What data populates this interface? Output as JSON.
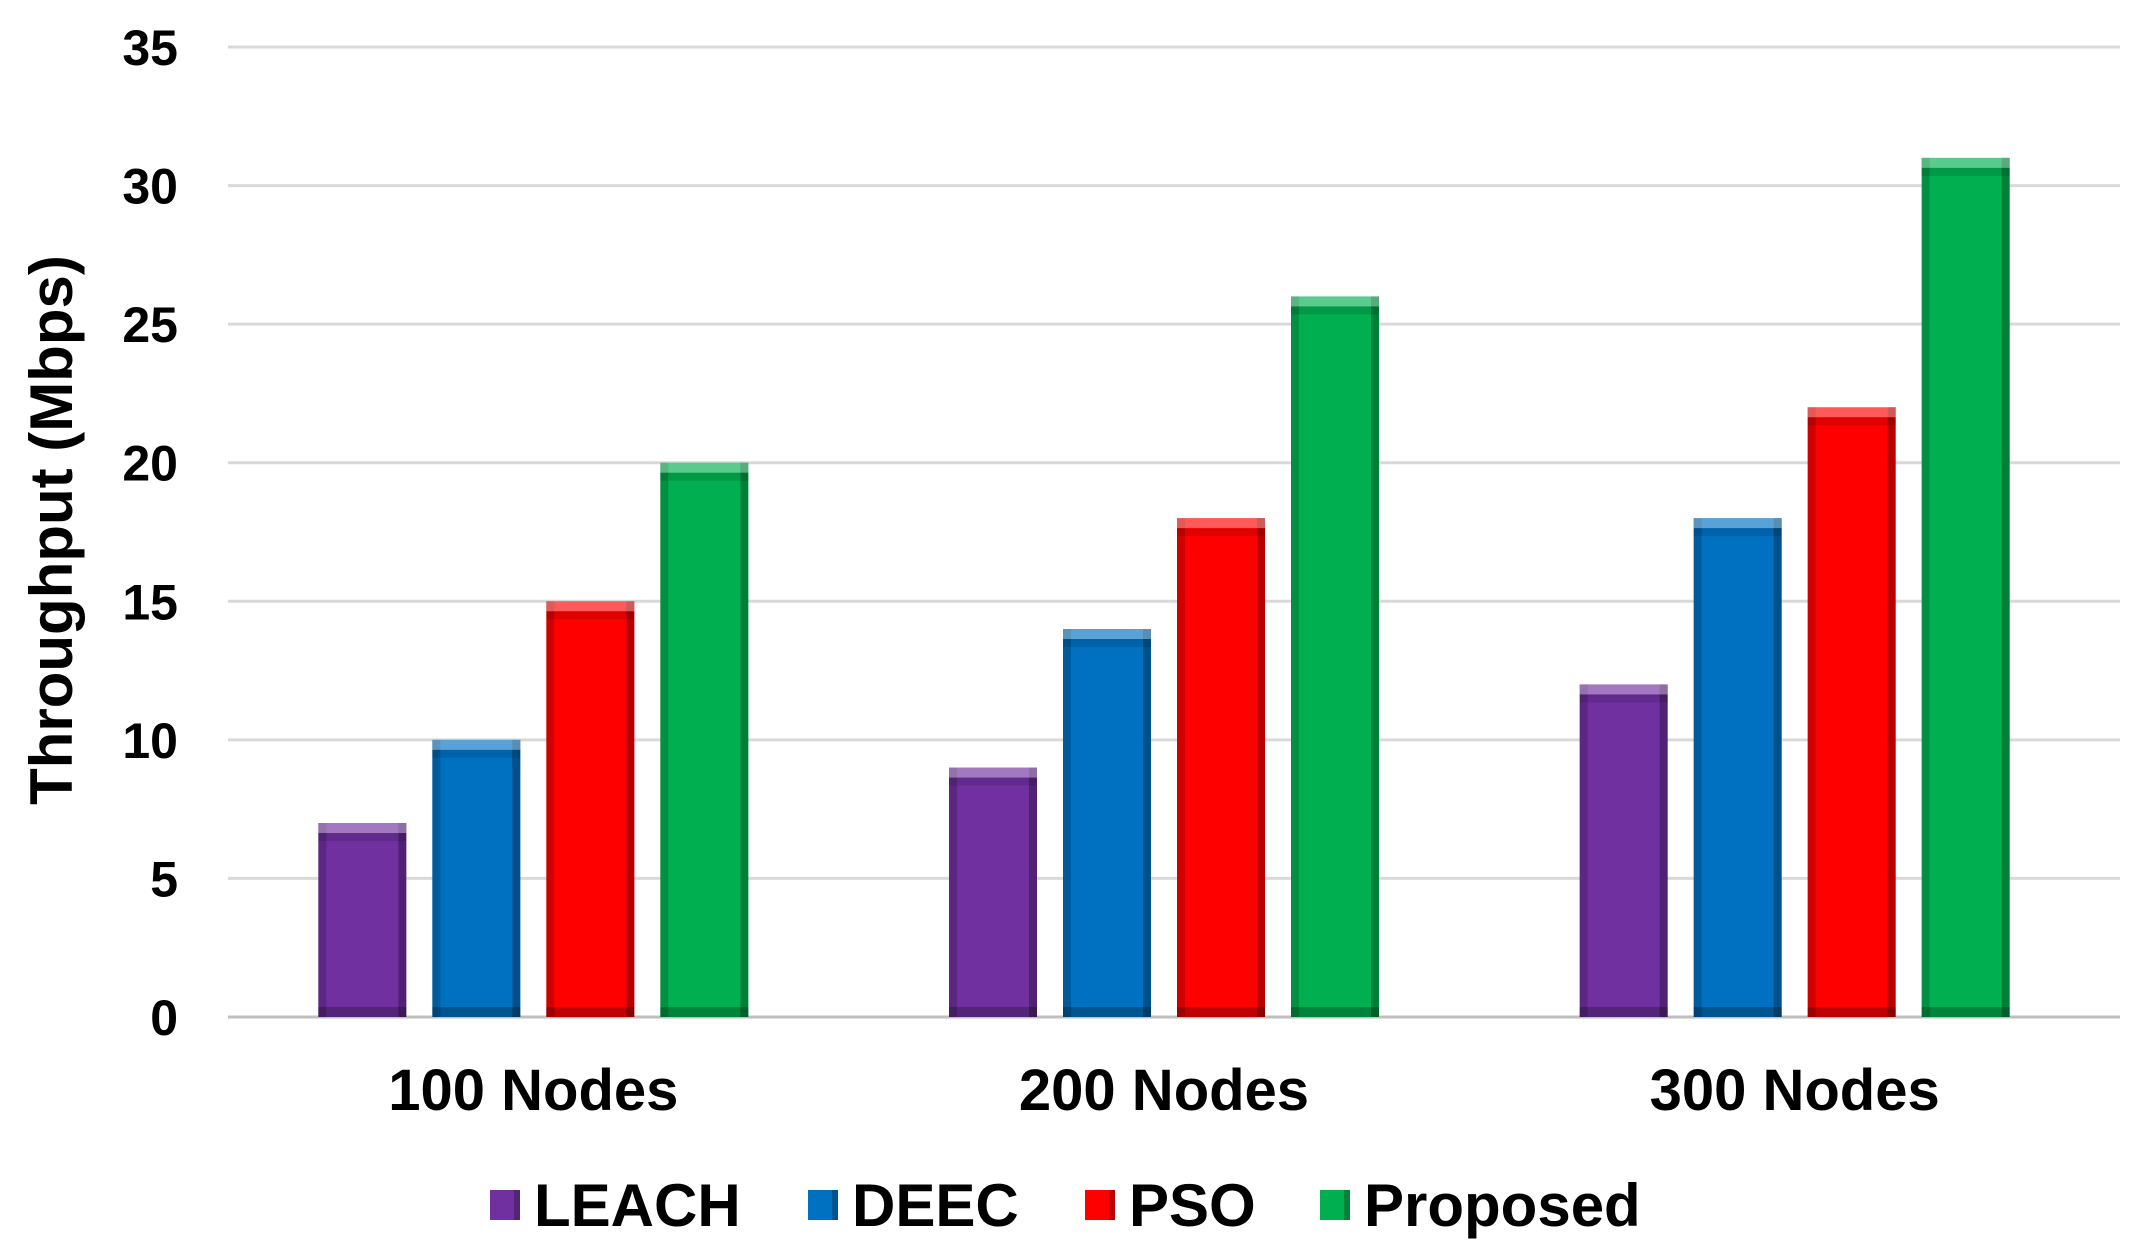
{
  "chart_data": {
    "type": "bar",
    "title": "",
    "xlabel": "",
    "ylabel": "Throughput (Mbps)",
    "ylim": [
      0,
      35
    ],
    "yticks": [
      0,
      5,
      10,
      15,
      20,
      25,
      30,
      35
    ],
    "grid": true,
    "legend_position": "bottom",
    "categories": [
      "100 Nodes",
      "200 Nodes",
      "300 Nodes"
    ],
    "series": [
      {
        "name": "LEACH",
        "color": "#7030a0",
        "values": [
          7,
          9,
          12
        ]
      },
      {
        "name": "DEEC",
        "color": "#0070c0",
        "values": [
          10,
          14,
          18
        ]
      },
      {
        "name": "PSO",
        "color": "#ff0000",
        "values": [
          15,
          18,
          22
        ]
      },
      {
        "name": "Proposed",
        "color": "#00b050",
        "values": [
          20,
          26,
          31
        ]
      }
    ]
  }
}
